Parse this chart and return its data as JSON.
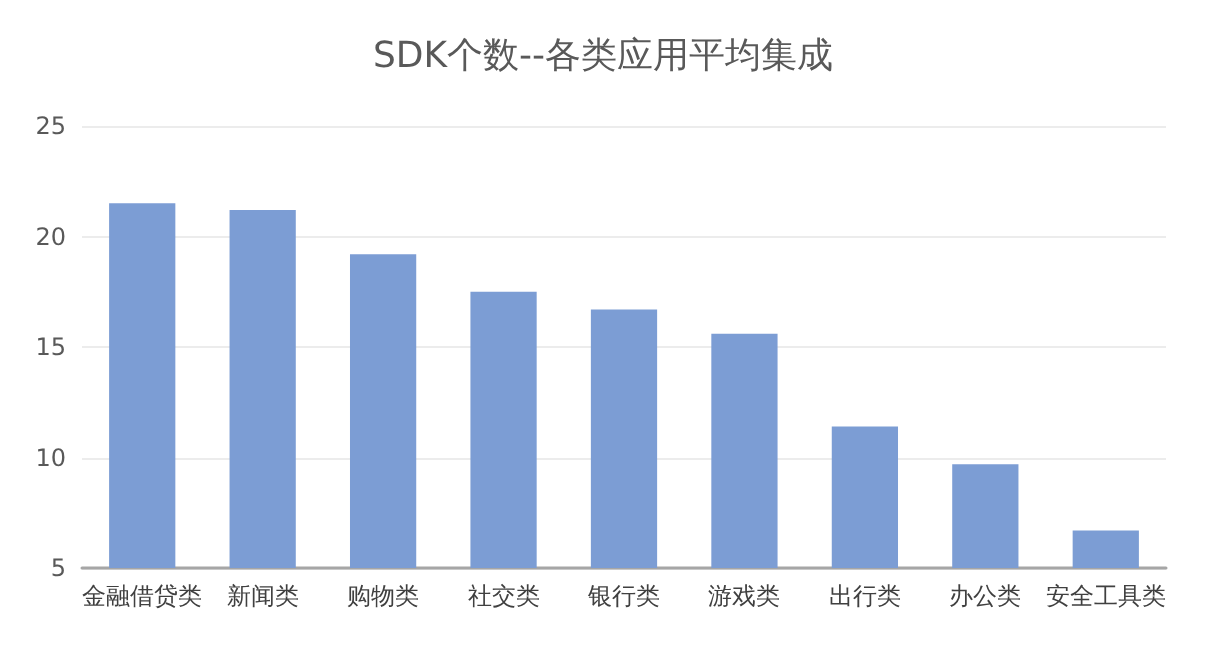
{
  "chart_data": {
    "type": "bar",
    "title": "SDK个数--各类应用平均集成",
    "categories": [
      "金融借贷类",
      "新闻类",
      "购物类",
      "社交类",
      "银行类",
      "游戏类",
      "出行类",
      "办公类",
      "安全工具类"
    ],
    "values": [
      21.5,
      21.2,
      19.2,
      17.5,
      16.7,
      15.6,
      11.4,
      9.7,
      6.7
    ],
    "color": "#7c9dd4",
    "ylim": [
      5,
      25
    ],
    "yticks": [
      5,
      10,
      15,
      20,
      25
    ],
    "grid": "y"
  }
}
